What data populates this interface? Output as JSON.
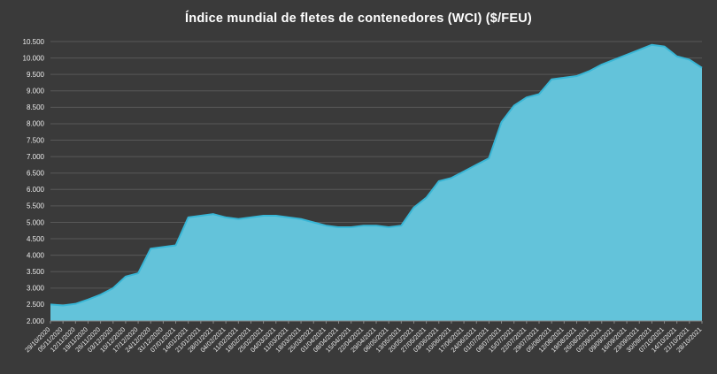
{
  "chart_data": {
    "type": "area",
    "title": "Índice mundial de fletes de contenedores (WCI) ($/FEU)",
    "xlabel": "",
    "ylabel": "",
    "ylim": [
      2000,
      10500
    ],
    "ytick_step": 500,
    "grid": true,
    "legend_position": "none",
    "x": [
      "29/10/2020",
      "05/11/2020",
      "12/11/2020",
      "19/11/2020",
      "26/11/2020",
      "03/12/2020",
      "10/12/2020",
      "17/12/2020",
      "24/12/2020",
      "31/12/2020",
      "07/01/2021",
      "14/01/2021",
      "21/01/2021",
      "28/01/2021",
      "04/02/2021",
      "11/02/2021",
      "18/02/2021",
      "25/02/2021",
      "04/03/2021",
      "11/03/2021",
      "18/03/2021",
      "25/03/2021",
      "01/04/2021",
      "08/04/2021",
      "15/04/2021",
      "22/04/2021",
      "29/04/2021",
      "06/05/2021",
      "13/05/2021",
      "20/05/2021",
      "27/05/2021",
      "03/06/2021",
      "10/06/2021",
      "17/06/2021",
      "24/06/2021",
      "01/07/2021",
      "08/07/2021",
      "15/07/2021",
      "22/07/2021",
      "29/07/2021",
      "05/08/2021",
      "12/08/2021",
      "19/08/2021",
      "26/08/2021",
      "02/09/2021",
      "09/09/2021",
      "16/09/2021",
      "23/09/2021",
      "30/09/2021",
      "07/10/2021",
      "14/10/2021",
      "21/10/2021",
      "28/10/2021"
    ],
    "values": [
      2500,
      2470,
      2520,
      2650,
      2800,
      3000,
      3350,
      3450,
      4200,
      4250,
      4300,
      5150,
      5200,
      5250,
      5150,
      5100,
      5150,
      5200,
      5200,
      5150,
      5100,
      5000,
      4900,
      4850,
      4850,
      4900,
      4900,
      4850,
      4900,
      5450,
      5750,
      6250,
      6350,
      6550,
      6750,
      6950,
      8050,
      8550,
      8800,
      8900,
      9350,
      9400,
      9450,
      9600,
      9800,
      9950,
      10100,
      10250,
      10400,
      10350,
      10050,
      9950,
      9700
    ]
  },
  "colors": {
    "background": "#3a3a3a",
    "area_fill": "#63c3da",
    "line": "#38b6d6",
    "grid": "#585858",
    "axis_line": "#8a8a8a",
    "axis_text": "#ececec",
    "title_text": "#ffffff"
  }
}
